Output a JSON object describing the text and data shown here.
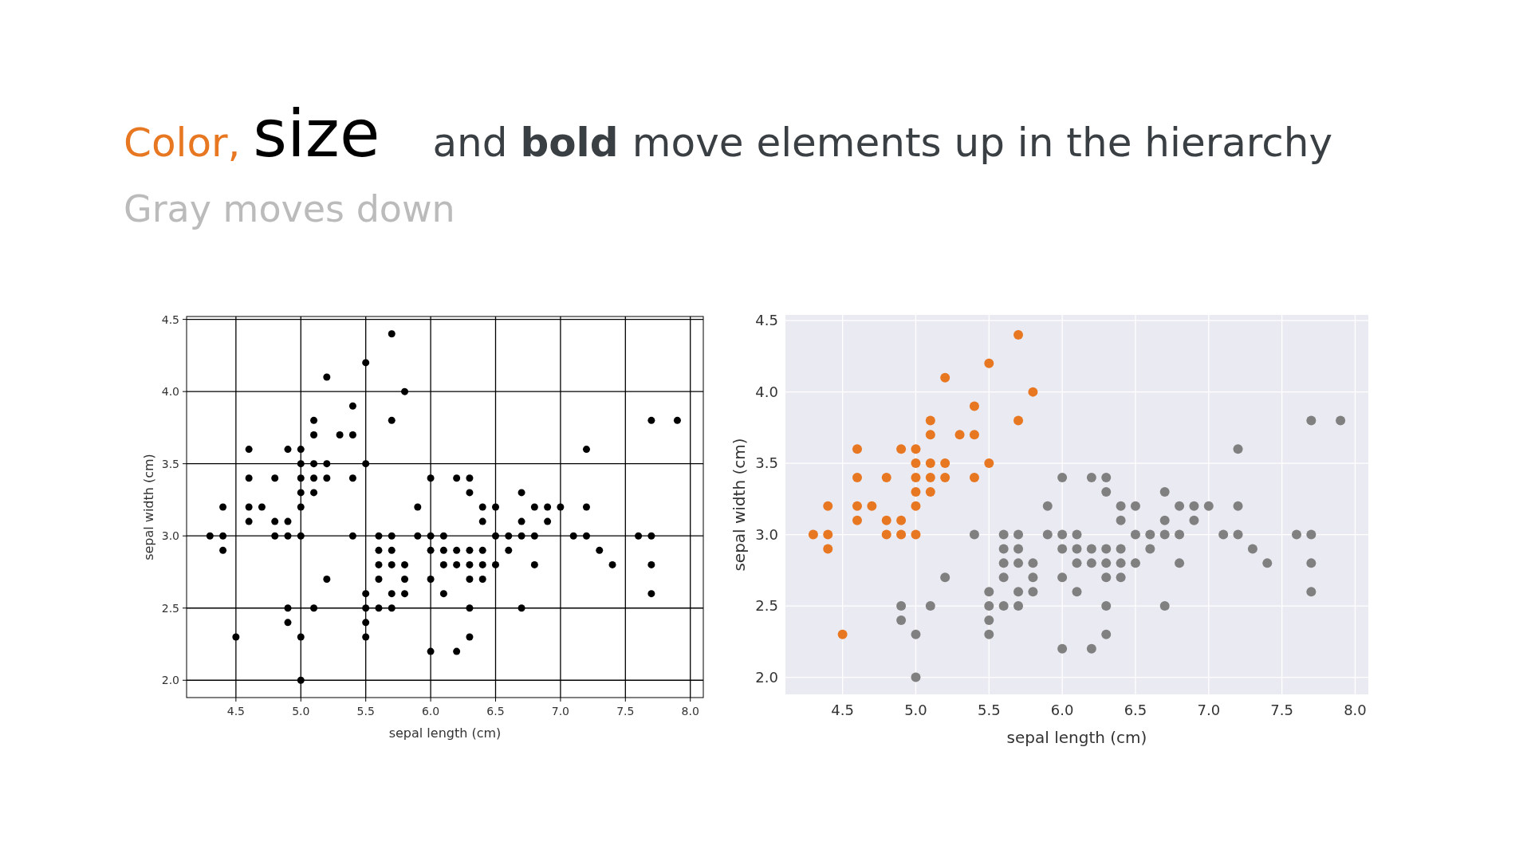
{
  "chart_data": [
    {
      "type": "scatter",
      "title": "Color, size and bold move elements up in the hierarchy",
      "subtitle": "Gray moves down",
      "xlabel": "sepal length (cm)",
      "ylabel": "sepal width (cm)",
      "xlim": [
        4.12,
        8.1
      ],
      "ylim": [
        1.88,
        4.52
      ],
      "xticks": [
        4.5,
        {
          "value": 5,
          "label": "5.0"
        },
        5.5,
        {
          "value": 6,
          "label": "6.0"
        },
        6.5,
        {
          "value": 7,
          "label": "7.0"
        },
        7.5,
        {
          "value": 8,
          "label": "8.0"
        }
      ],
      "yticks": [
        {
          "value": 2,
          "label": "2.0"
        },
        2.5,
        {
          "value": 3,
          "label": "3.0"
        },
        3.5,
        {
          "value": 4,
          "label": "4.0"
        },
        4.5
      ],
      "grid": true,
      "marker": "circle",
      "series": [
        {
          "color": "#000000",
          "x": [
            5.1,
            4.9,
            4.7,
            4.6,
            5.0,
            5.4,
            4.6,
            5.0,
            4.4,
            4.9,
            5.4,
            4.8,
            4.8,
            4.3,
            5.8,
            5.7,
            5.7,
            5.1,
            5.4,
            5.1,
            4.6,
            5.1,
            5.0,
            5.2,
            5.2,
            4.8,
            5.2,
            5.5,
            5.0,
            5.5,
            4.9,
            4.4,
            5.1,
            5.0,
            4.5,
            4.4,
            4.6,
            5.3,
            5.0
          ],
          "values": [
            3.5,
            3.0,
            3.2,
            3.1,
            3.6,
            3.9,
            3.4,
            3.4,
            2.9,
            3.1,
            3.7,
            3.4,
            3.0,
            3.0,
            4.0,
            4.4,
            3.8,
            3.8,
            3.4,
            3.7,
            3.6,
            3.3,
            3.0,
            3.5,
            3.4,
            3.1,
            4.1,
            4.2,
            3.2,
            3.5,
            3.6,
            3.0,
            3.4,
            3.5,
            2.3,
            3.2,
            3.2,
            3.7,
            3.3
          ]
        },
        {
          "color": "#000000",
          "x": [
            7.0,
            6.4,
            6.9,
            5.5,
            6.5,
            5.7,
            6.3,
            4.9,
            6.6,
            5.2,
            5.0,
            5.9,
            6.0,
            6.1,
            5.6,
            6.7,
            5.6,
            5.8,
            6.2,
            5.6,
            5.9,
            6.1,
            6.3,
            6.4,
            6.6,
            6.8,
            6.7,
            6.0,
            5.7,
            5.5,
            6.0,
            5.4,
            6.0,
            6.3,
            5.5,
            5.5,
            6.1,
            5.8,
            5.0,
            5.6,
            5.7,
            5.7,
            6.2,
            5.1,
            7.1,
            6.3,
            6.5,
            7.6,
            4.9,
            7.3,
            6.7,
            7.2,
            6.5,
            6.4,
            6.8,
            5.7,
            5.8,
            7.7,
            7.7,
            6.9,
            5.6,
            7.7,
            6.3,
            6.7,
            7.2,
            6.2,
            6.4,
            7.2,
            7.4,
            7.9,
            6.3,
            6.1,
            7.7,
            6.3,
            6.4,
            6.0,
            6.8,
            6.2
          ],
          "values": [
            3.2,
            3.2,
            3.1,
            2.3,
            2.8,
            2.8,
            3.3,
            2.4,
            2.9,
            2.7,
            2.0,
            3.0,
            2.2,
            2.9,
            2.9,
            3.1,
            3.0,
            2.7,
            2.2,
            2.5,
            3.2,
            2.8,
            2.5,
            2.9,
            3.0,
            2.8,
            3.0,
            2.9,
            2.6,
            2.4,
            2.7,
            3.0,
            3.4,
            2.3,
            2.5,
            2.6,
            3.0,
            2.6,
            2.3,
            2.7,
            3.0,
            2.9,
            2.9,
            2.5,
            3.0,
            2.9,
            3.0,
            3.0,
            2.5,
            2.9,
            2.5,
            3.6,
            3.2,
            2.7,
            3.0,
            2.5,
            2.8,
            3.8,
            2.6,
            3.2,
            2.8,
            2.8,
            2.7,
            3.3,
            3.2,
            2.8,
            2.8,
            3.0,
            2.8,
            3.8,
            2.8,
            2.6,
            3.0,
            3.4,
            3.1,
            3.0,
            3.2,
            3.4
          ]
        }
      ]
    },
    {
      "type": "scatter",
      "xlabel": "sepal length (cm)",
      "ylabel": "sepal width (cm)",
      "xlim": [
        4.11,
        8.09
      ],
      "ylim": [
        1.88,
        4.54
      ],
      "xticks": [
        4.5,
        {
          "value": 5,
          "label": "5.0"
        },
        5.5,
        {
          "value": 6,
          "label": "6.0"
        },
        6.5,
        {
          "value": 7,
          "label": "7.0"
        },
        7.5,
        {
          "value": 8,
          "label": "8.0"
        }
      ],
      "yticks": [
        {
          "value": 2,
          "label": "2.0"
        },
        2.5,
        {
          "value": 3,
          "label": "3.0"
        },
        3.5,
        {
          "value": 4,
          "label": "4.0"
        },
        4.5
      ],
      "grid": true,
      "marker": "circle",
      "series": [
        {
          "color": "#e87722",
          "x": [
            5.1,
            4.9,
            4.7,
            4.6,
            5.0,
            5.4,
            4.6,
            5.0,
            4.4,
            4.9,
            5.4,
            4.8,
            4.8,
            4.3,
            5.8,
            5.7,
            5.7,
            5.1,
            5.4,
            5.1,
            4.6,
            5.1,
            5.0,
            5.2,
            5.2,
            4.8,
            5.2,
            5.5,
            5.0,
            5.5,
            4.9,
            4.4,
            5.1,
            5.0,
            4.5,
            4.4,
            4.6,
            5.3,
            5.0
          ],
          "values": [
            3.5,
            3.0,
            3.2,
            3.1,
            3.6,
            3.9,
            3.4,
            3.4,
            2.9,
            3.1,
            3.7,
            3.4,
            3.0,
            3.0,
            4.0,
            4.4,
            3.8,
            3.8,
            3.4,
            3.7,
            3.6,
            3.3,
            3.0,
            3.5,
            3.4,
            3.1,
            4.1,
            4.2,
            3.2,
            3.5,
            3.6,
            3.0,
            3.4,
            3.5,
            2.3,
            3.2,
            3.2,
            3.7,
            3.3
          ]
        },
        {
          "color": "#808080",
          "x": [
            7.0,
            6.4,
            6.9,
            5.5,
            6.5,
            5.7,
            6.3,
            4.9,
            6.6,
            5.2,
            5.0,
            5.9,
            6.0,
            6.1,
            5.6,
            6.7,
            5.6,
            5.8,
            6.2,
            5.6,
            5.9,
            6.1,
            6.3,
            6.4,
            6.6,
            6.8,
            6.7,
            6.0,
            5.7,
            5.5,
            6.0,
            5.4,
            6.0,
            6.3,
            5.5,
            5.5,
            6.1,
            5.8,
            5.0,
            5.6,
            5.7,
            5.7,
            6.2,
            5.1,
            7.1,
            6.3,
            6.5,
            7.6,
            4.9,
            7.3,
            6.7,
            7.2,
            6.5,
            6.4,
            6.8,
            5.7,
            5.8,
            7.7,
            7.7,
            6.9,
            5.6,
            7.7,
            6.3,
            6.7,
            7.2,
            6.2,
            6.4,
            7.2,
            7.4,
            7.9,
            6.3,
            6.1,
            7.7,
            6.3,
            6.4,
            6.0,
            6.8,
            6.2
          ],
          "values": [
            3.2,
            3.2,
            3.1,
            2.3,
            2.8,
            2.8,
            3.3,
            2.4,
            2.9,
            2.7,
            2.0,
            3.0,
            2.2,
            2.9,
            2.9,
            3.1,
            3.0,
            2.7,
            2.2,
            2.5,
            3.2,
            2.8,
            2.5,
            2.9,
            3.0,
            2.8,
            3.0,
            2.9,
            2.6,
            2.4,
            2.7,
            3.0,
            3.4,
            2.3,
            2.5,
            2.6,
            3.0,
            2.6,
            2.3,
            2.7,
            3.0,
            2.9,
            2.9,
            2.5,
            3.0,
            2.9,
            3.0,
            3.0,
            2.5,
            2.9,
            2.5,
            3.6,
            3.2,
            2.7,
            3.0,
            2.5,
            2.8,
            3.8,
            2.6,
            3.2,
            2.8,
            2.8,
            2.7,
            3.3,
            3.2,
            2.8,
            2.8,
            3.0,
            2.8,
            3.8,
            2.8,
            2.6,
            3.0,
            3.4,
            3.1,
            3.0,
            3.2,
            3.4
          ]
        }
      ]
    }
  ]
}
